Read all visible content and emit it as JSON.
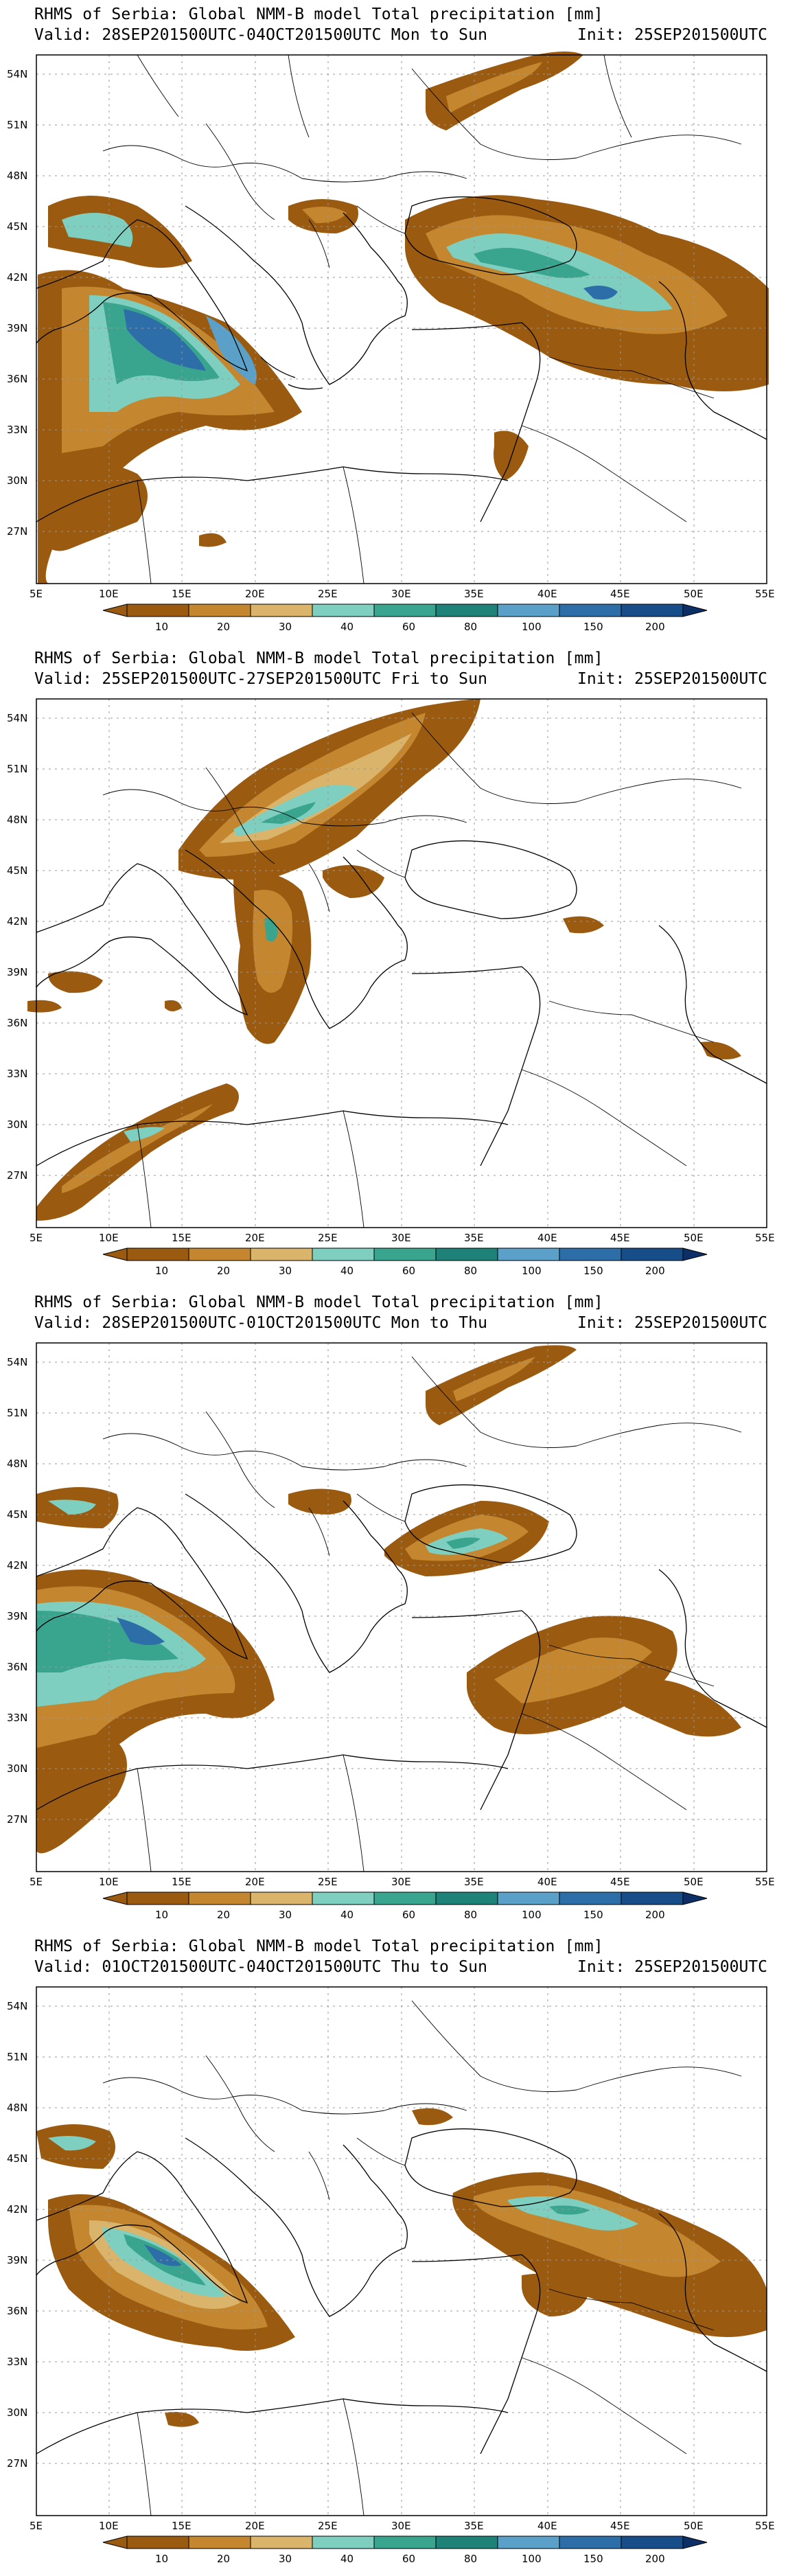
{
  "panels": [
    {
      "title_line1": "RHMS of Serbia: Global NMM-B model Total precipitation [mm]",
      "title_line2": "Valid: 28SEP201500UTC-04OCT201500UTC Mon to Sun",
      "init": "Init: 25SEP201500UTC"
    },
    {
      "title_line1": "RHMS of Serbia: Global NMM-B model Total precipitation [mm]",
      "title_line2": "Valid: 25SEP201500UTC-27SEP201500UTC Fri to Sun",
      "init": "Init: 25SEP201500UTC"
    },
    {
      "title_line1": "RHMS of Serbia: Global NMM-B model Total precipitation [mm]",
      "title_line2": "Valid: 28SEP201500UTC-01OCT201500UTC Mon to Thu",
      "init": "Init: 25SEP201500UTC"
    },
    {
      "title_line1": "RHMS of Serbia: Global NMM-B model Total precipitation [mm]",
      "title_line2": "Valid: 01OCT201500UTC-04OCT201500UTC Thu to Sun",
      "init": "Init: 25SEP201500UTC"
    }
  ],
  "map": {
    "lon_labels": [
      "5E",
      "10E",
      "15E",
      "20E",
      "25E",
      "30E",
      "35E",
      "40E",
      "45E",
      "50E",
      "55E"
    ],
    "lat_labels": [
      "54N",
      "51N",
      "48N",
      "45N",
      "42N",
      "39N",
      "36N",
      "33N",
      "30N",
      "27N"
    ]
  },
  "colorbar": {
    "levels": [
      "10",
      "20",
      "30",
      "40",
      "60",
      "80",
      "100",
      "150",
      "200"
    ],
    "colors": [
      "#9a5a10",
      "#c4862e",
      "#d9b46a",
      "#7fcfc0",
      "#3aa58e",
      "#1e8278",
      "#5aa0c8",
      "#2d6ea8",
      "#174d88",
      "#0b2f66"
    ]
  }
}
